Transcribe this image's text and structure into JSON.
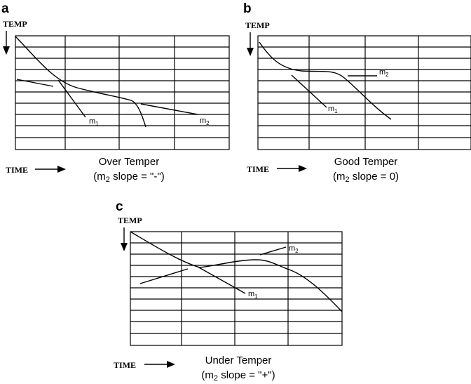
{
  "panels": [
    {
      "letter": "a",
      "temp_label": "TEMP",
      "time_label": "TIME",
      "caption_line1": "Over Temper",
      "caption_line2_prefix": "(m",
      "caption_line2_sub": "2",
      "caption_line2_suffix": " slope = \"-\")",
      "m1": "m",
      "m1_sub": "1",
      "m2": "m",
      "m2_sub": "2"
    },
    {
      "letter": "b",
      "temp_label": "TEMP",
      "time_label": "TIME",
      "caption_line1": "Good Temper",
      "caption_line2_prefix": "(m",
      "caption_line2_sub": "2",
      "caption_line2_suffix": " slope = 0)",
      "m1": "m",
      "m1_sub": "1",
      "m2": "m",
      "m2_sub": "2"
    },
    {
      "letter": "c",
      "temp_label": "TEMP",
      "time_label": "TIME",
      "caption_line1": "Under Temper",
      "caption_line2_prefix": "(m",
      "caption_line2_sub": "2",
      "caption_line2_suffix": " slope = \"+\")",
      "m1": "m",
      "m1_sub": "1",
      "m2": "m",
      "m2_sub": "2"
    }
  ]
}
